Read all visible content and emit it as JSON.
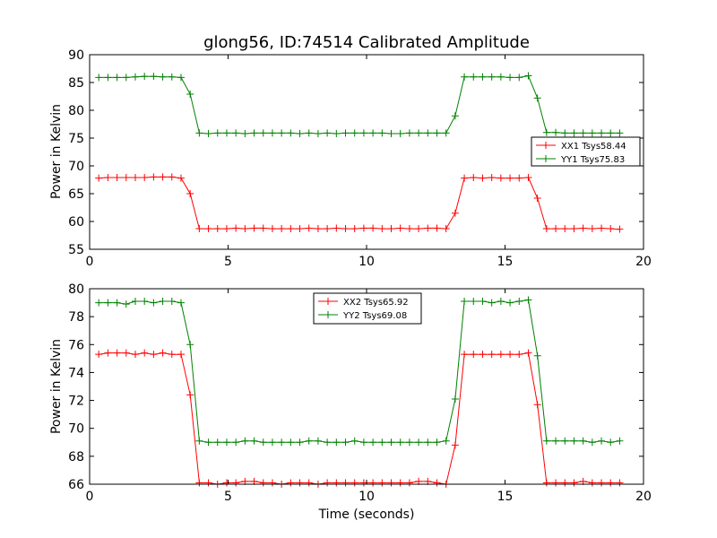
{
  "figure": {
    "title": "glong56, ID:74514 Calibrated Amplitude",
    "xlabel": "Time (seconds)",
    "ylabel": "Power in Kelvin"
  },
  "chart_data": [
    {
      "type": "line",
      "title": "glong56, ID:74514 Calibrated Amplitude",
      "xlabel": "",
      "ylabel": "Power in Kelvin",
      "xlim": [
        0,
        20
      ],
      "ylim": [
        55,
        90
      ],
      "xticks": [
        0,
        5,
        10,
        15,
        20
      ],
      "yticks": [
        55,
        60,
        65,
        70,
        75,
        80,
        85,
        90
      ],
      "legend": "right",
      "x": [
        0.33,
        0.66,
        0.99,
        1.32,
        1.65,
        1.98,
        2.31,
        2.64,
        2.97,
        3.3,
        3.63,
        3.96,
        4.29,
        4.62,
        4.95,
        5.28,
        5.61,
        5.94,
        6.27,
        6.6,
        6.93,
        7.26,
        7.59,
        7.92,
        8.25,
        8.58,
        8.91,
        9.24,
        9.57,
        9.9,
        10.23,
        10.56,
        10.89,
        11.22,
        11.55,
        11.88,
        12.21,
        12.54,
        12.87,
        13.2,
        13.53,
        13.86,
        14.19,
        14.52,
        14.85,
        15.18,
        15.51,
        15.84,
        16.17,
        16.5,
        16.83,
        17.16,
        17.49,
        17.82,
        18.15,
        18.48,
        18.81,
        19.14
      ],
      "series": [
        {
          "name": "XX1 Tsys58.44",
          "color": "#ff0000",
          "values": [
            67.8,
            67.9,
            67.9,
            67.9,
            67.9,
            67.9,
            68.0,
            68.0,
            68.0,
            67.8,
            65.0,
            58.7,
            58.7,
            58.7,
            58.7,
            58.8,
            58.7,
            58.8,
            58.8,
            58.7,
            58.7,
            58.7,
            58.7,
            58.8,
            58.7,
            58.7,
            58.8,
            58.7,
            58.7,
            58.8,
            58.8,
            58.7,
            58.7,
            58.8,
            58.7,
            58.7,
            58.8,
            58.8,
            58.7,
            61.5,
            67.8,
            67.9,
            67.8,
            67.9,
            67.8,
            67.8,
            67.8,
            67.9,
            64.2,
            58.7,
            58.7,
            58.7,
            58.7,
            58.8,
            58.7,
            58.8,
            58.7,
            58.6
          ]
        },
        {
          "name": "YY1 Tsys75.83",
          "color": "#008000",
          "values": [
            85.9,
            85.9,
            85.9,
            85.9,
            86.0,
            86.1,
            86.1,
            86.0,
            86.0,
            85.9,
            82.9,
            75.9,
            75.8,
            75.9,
            75.9,
            75.9,
            75.8,
            75.9,
            75.9,
            75.9,
            75.9,
            75.9,
            75.8,
            75.9,
            75.8,
            75.9,
            75.8,
            75.9,
            75.9,
            75.9,
            75.9,
            75.9,
            75.8,
            75.8,
            75.9,
            75.9,
            75.9,
            75.9,
            75.9,
            79.0,
            86.0,
            86.0,
            86.0,
            86.0,
            86.0,
            85.9,
            85.9,
            86.2,
            82.2,
            76.0,
            76.0,
            75.9,
            75.9,
            75.9,
            75.9,
            75.9,
            75.9,
            75.9
          ]
        }
      ]
    },
    {
      "type": "line",
      "title": "",
      "xlabel": "Time (seconds)",
      "ylabel": "Power in Kelvin",
      "xlim": [
        0,
        20
      ],
      "ylim": [
        66,
        80
      ],
      "xticks": [
        0,
        5,
        10,
        15,
        20
      ],
      "yticks": [
        66,
        68,
        70,
        72,
        74,
        76,
        78,
        80
      ],
      "legend": "top-center",
      "x": [
        0.33,
        0.66,
        0.99,
        1.32,
        1.65,
        1.98,
        2.31,
        2.64,
        2.97,
        3.3,
        3.63,
        3.96,
        4.29,
        4.62,
        4.95,
        5.28,
        5.61,
        5.94,
        6.27,
        6.6,
        6.93,
        7.26,
        7.59,
        7.92,
        8.25,
        8.58,
        8.91,
        9.24,
        9.57,
        9.9,
        10.23,
        10.56,
        10.89,
        11.22,
        11.55,
        11.88,
        12.21,
        12.54,
        12.87,
        13.2,
        13.53,
        13.86,
        14.19,
        14.52,
        14.85,
        15.18,
        15.51,
        15.84,
        16.17,
        16.5,
        16.83,
        17.16,
        17.49,
        17.82,
        18.15,
        18.48,
        18.81,
        19.14
      ],
      "series": [
        {
          "name": "XX2 Tsys65.92",
          "color": "#ff0000",
          "values": [
            75.3,
            75.4,
            75.4,
            75.4,
            75.3,
            75.4,
            75.3,
            75.4,
            75.3,
            75.3,
            72.4,
            66.1,
            66.1,
            66.0,
            66.1,
            66.1,
            66.2,
            66.2,
            66.1,
            66.1,
            66.0,
            66.1,
            66.1,
            66.1,
            66.0,
            66.1,
            66.1,
            66.1,
            66.1,
            66.1,
            66.1,
            66.1,
            66.1,
            66.1,
            66.1,
            66.2,
            66.2,
            66.1,
            66.0,
            68.8,
            75.3,
            75.3,
            75.3,
            75.3,
            75.3,
            75.3,
            75.3,
            75.4,
            71.7,
            66.1,
            66.1,
            66.1,
            66.1,
            66.2,
            66.1,
            66.1,
            66.1,
            66.1
          ]
        },
        {
          "name": "YY2 Tsys69.08",
          "color": "#008000",
          "values": [
            79.0,
            79.0,
            79.0,
            78.9,
            79.1,
            79.1,
            79.0,
            79.1,
            79.1,
            79.0,
            76.0,
            69.1,
            69.0,
            69.0,
            69.0,
            69.0,
            69.1,
            69.1,
            69.0,
            69.0,
            69.0,
            69.0,
            69.0,
            69.1,
            69.1,
            69.0,
            69.0,
            69.0,
            69.1,
            69.0,
            69.0,
            69.0,
            69.0,
            69.0,
            69.0,
            69.0,
            69.0,
            69.0,
            69.1,
            72.1,
            79.1,
            79.1,
            79.1,
            79.0,
            79.1,
            79.0,
            79.1,
            79.2,
            75.2,
            69.1,
            69.1,
            69.1,
            69.1,
            69.1,
            69.0,
            69.1,
            69.0,
            69.1
          ]
        }
      ]
    }
  ]
}
